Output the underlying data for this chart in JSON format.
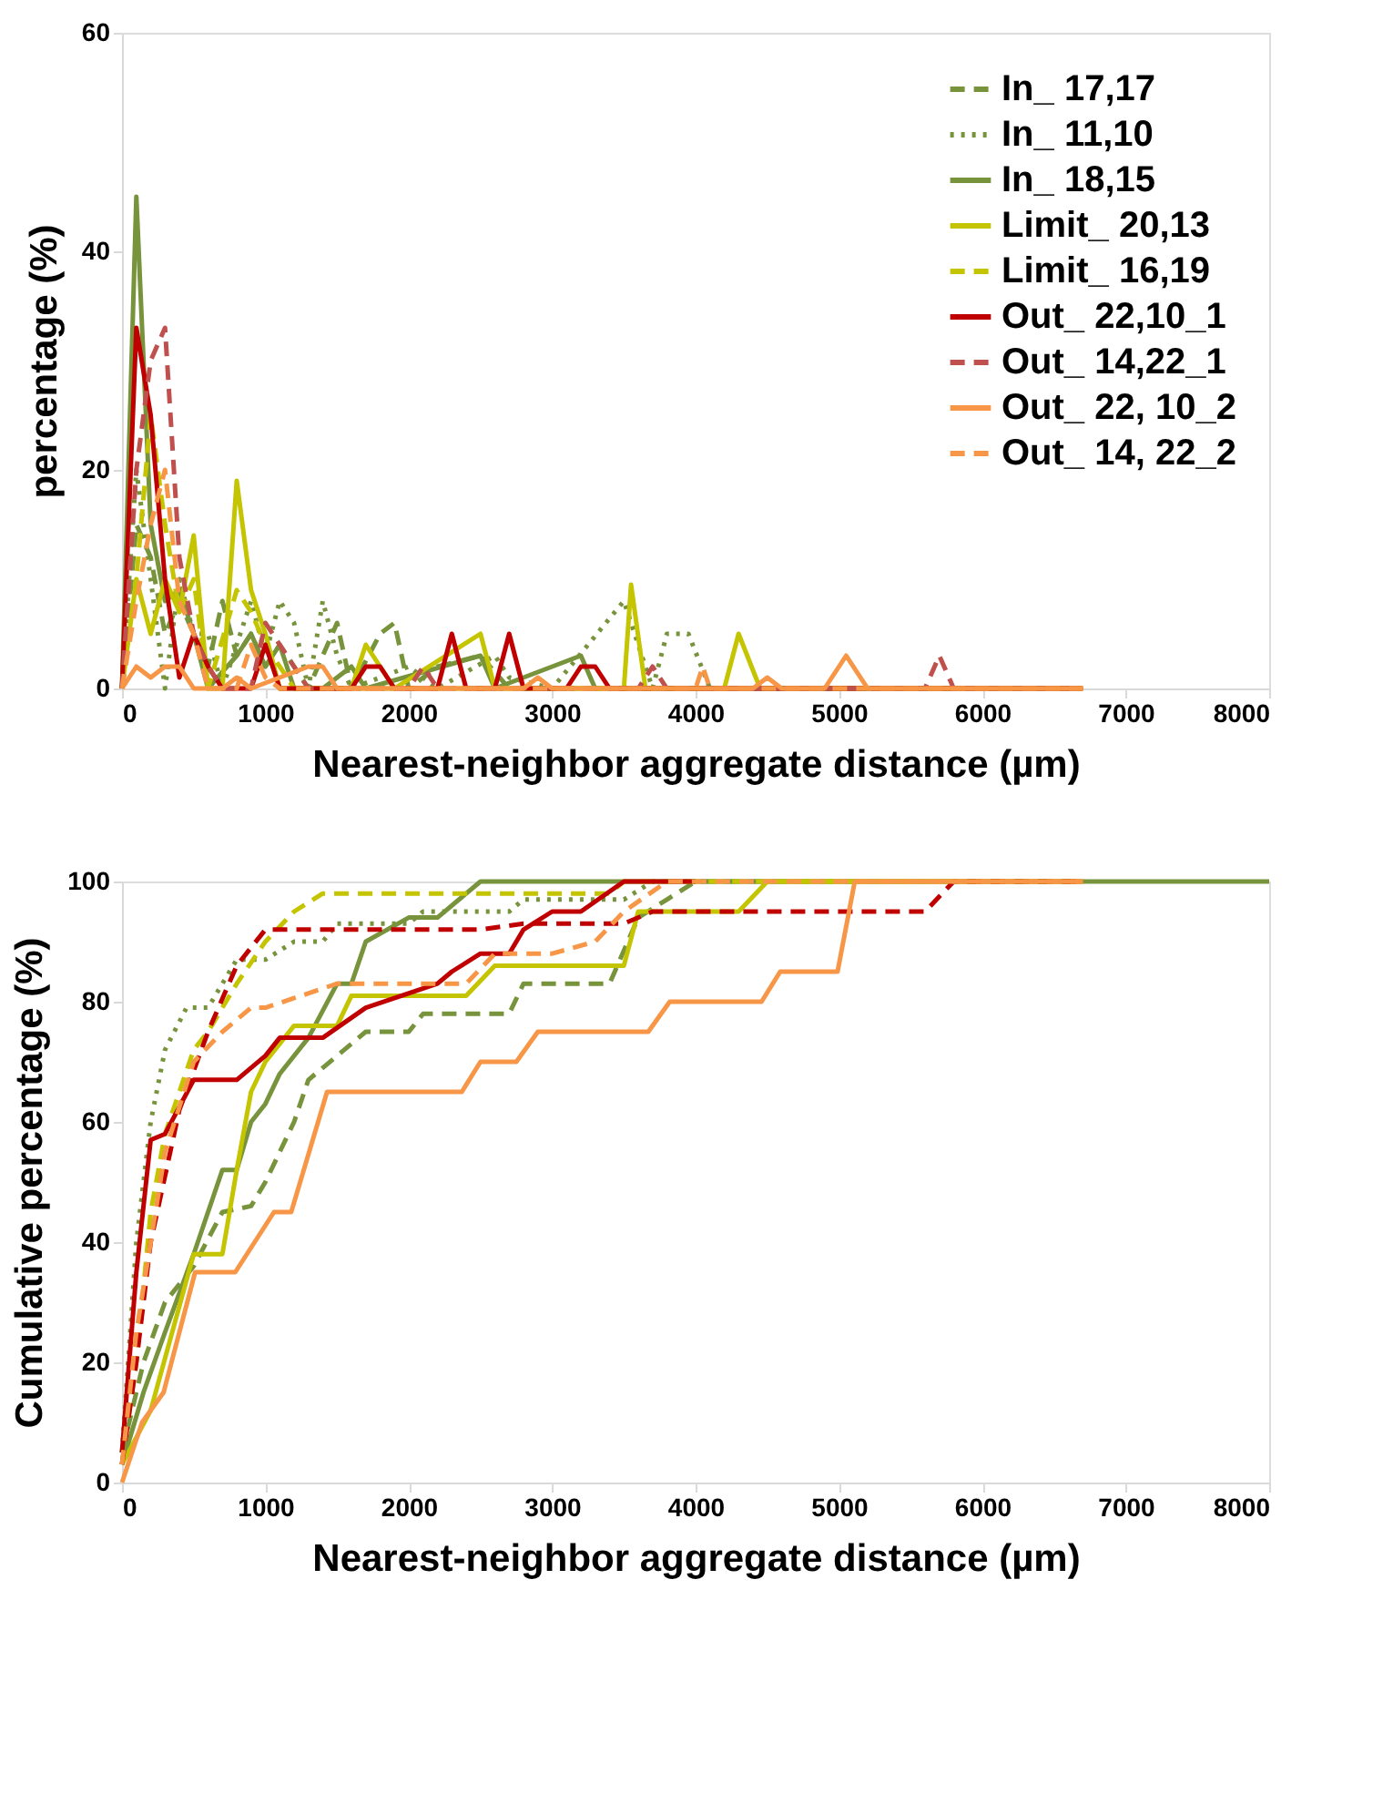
{
  "chart_data": [
    {
      "type": "line",
      "xlabel": "Nearest-neighbor aggregate distance (µm)",
      "ylabel": "percentage (%)",
      "xlim": [
        0,
        8000
      ],
      "xticks": [
        0,
        1000,
        2000,
        3000,
        4000,
        5000,
        6000,
        7000,
        8000
      ],
      "ylim": [
        0,
        60
      ],
      "yticks": [
        0,
        20,
        40,
        60
      ],
      "grid": false,
      "legend": "top right",
      "series": [
        {
          "name": "In_ 17,17",
          "color": "#77933c",
          "line_style": "dashed",
          "x": [
            0,
            100,
            200,
            300,
            400,
            500,
            600,
            700,
            800,
            900,
            1000,
            1100,
            1300,
            1500,
            1600,
            1800,
            1900,
            2000,
            2200,
            2500,
            2700,
            6700
          ],
          "values": [
            0,
            15,
            12,
            5,
            8,
            5,
            2,
            8,
            3,
            5,
            2,
            4,
            0,
            6,
            0,
            5,
            6,
            0,
            2,
            3,
            0,
            0
          ]
        },
        {
          "name": "In_ 11,10",
          "color": "#77933c",
          "line_style": "dotted",
          "x": [
            0,
            100,
            200,
            300,
            400,
            500,
            600,
            700,
            900,
            1000,
            1100,
            1200,
            1300,
            1400,
            1500,
            1600,
            2000,
            2200,
            2600,
            2700,
            3000,
            3500,
            3700,
            3800,
            3950,
            4100,
            6700
          ],
          "values": [
            0,
            20,
            10,
            0,
            10,
            5,
            5,
            0,
            8,
            3,
            8,
            6,
            0,
            8,
            3,
            0,
            2,
            0,
            3,
            1,
            0,
            8,
            0,
            5,
            5,
            0,
            0
          ]
        },
        {
          "name": "In_ 18,15",
          "color": "#77933c",
          "line_style": "solid",
          "x": [
            0,
            100,
            200,
            300,
            400,
            500,
            600,
            800,
            900,
            1000,
            1100,
            1200,
            1400,
            1600,
            1700,
            2500,
            2600,
            3200,
            3300,
            6700
          ],
          "values": [
            0,
            45,
            15,
            8,
            9,
            5,
            0,
            3,
            5,
            2,
            4,
            0,
            0,
            2,
            0,
            3,
            0,
            3,
            0,
            0
          ]
        },
        {
          "name": "Limit_ 20,13",
          "color": "#c4c400",
          "line_style": "solid",
          "x": [
            0,
            100,
            200,
            300,
            400,
            500,
            600,
            700,
            800,
            900,
            1000,
            1100,
            1600,
            1700,
            1900,
            2500,
            2600,
            3500,
            3550,
            3650,
            4200,
            4300,
            4450,
            6700
          ],
          "values": [
            0,
            10,
            5,
            10,
            7,
            14,
            0,
            0,
            19,
            9,
            5,
            0,
            0,
            4,
            0,
            5,
            0,
            0,
            9.5,
            0,
            0,
            5,
            0,
            0
          ]
        },
        {
          "name": "Limit_ 16,19",
          "color": "#c4c400",
          "line_style": "dashed",
          "x": [
            0,
            100,
            200,
            300,
            400,
            500,
            600,
            800,
            900,
            1000,
            1200,
            6700
          ],
          "values": [
            0,
            10,
            25,
            15,
            7,
            10,
            0,
            9,
            7,
            4,
            0,
            0
          ]
        },
        {
          "name": "Out_ 22,10_1",
          "color": "#c00000",
          "line_style": "solid",
          "x": [
            0,
            100,
            200,
            300,
            400,
            500,
            600,
            700,
            900,
            1000,
            1100,
            1600,
            1700,
            1800,
            1900,
            2200,
            2300,
            2400,
            2600,
            2700,
            2800,
            3100,
            3200,
            3300,
            3400,
            6700
          ],
          "values": [
            0,
            33,
            25,
            10,
            1,
            5,
            2,
            0,
            0,
            4,
            0,
            0,
            2,
            2,
            0,
            0,
            5,
            0,
            0,
            5,
            0,
            0,
            2,
            2,
            0,
            0
          ]
        },
        {
          "name": "Out_ 14,22_1",
          "color": "#c0504d",
          "line_style": "dashed",
          "x": [
            0,
            100,
            200,
            300,
            400,
            500,
            600,
            700,
            900,
            1000,
            1200,
            1300,
            2000,
            2100,
            2200,
            3600,
            3700,
            3800,
            5600,
            5700,
            5800,
            6700
          ],
          "values": [
            0,
            20,
            30,
            33,
            12,
            5,
            2,
            0,
            0,
            6,
            2,
            0,
            0,
            2,
            0,
            0,
            2,
            0,
            0,
            3,
            0,
            0
          ]
        },
        {
          "name": "Out_ 22, 10_2",
          "color": "#f79646",
          "line_style": "solid",
          "x": [
            0,
            100,
            200,
            300,
            400,
            500,
            700,
            800,
            900,
            1300,
            1400,
            1500,
            2800,
            2900,
            3000,
            4400,
            4500,
            4600,
            4900,
            5050,
            5200,
            6700
          ],
          "values": [
            0,
            2,
            1,
            2,
            2,
            0,
            0,
            1,
            0,
            2,
            2,
            0,
            0,
            1,
            0,
            0,
            1,
            0,
            0,
            3,
            0,
            0
          ]
        },
        {
          "name": "Out_ 14, 22_2",
          "color": "#f79646",
          "line_style": "dashed",
          "x": [
            0,
            100,
            200,
            300,
            400,
            500,
            600,
            800,
            900,
            1000,
            1100,
            4000,
            4050,
            4100,
            6700
          ],
          "values": [
            0,
            8,
            15,
            20,
            8,
            5,
            0,
            0,
            4,
            1,
            0,
            0,
            2,
            0,
            0
          ]
        }
      ]
    },
    {
      "type": "line",
      "xlabel": "Nearest-neighbor aggregate distance (µm)",
      "ylabel": "Cumulative percentage (%)",
      "xlim": [
        0,
        8000
      ],
      "xticks": [
        0,
        1000,
        2000,
        3000,
        4000,
        5000,
        6000,
        7000,
        8000
      ],
      "ylim": [
        0,
        100
      ],
      "yticks": [
        0,
        20,
        40,
        60,
        80,
        100
      ],
      "grid": false,
      "legend": false,
      "series": [
        {
          "color": "#77933c",
          "line_style": "dashed",
          "x": [
            0,
            150,
            300,
            500,
            700,
            900,
            1000,
            1200,
            1300,
            1500,
            1700,
            2000,
            2100,
            2700,
            2800,
            3400,
            3600,
            3800,
            4000,
            6700
          ],
          "values": [
            5,
            20,
            30,
            36,
            45,
            46,
            50,
            60,
            67,
            71,
            75,
            75,
            78,
            78,
            83,
            83,
            94,
            97,
            100,
            100
          ]
        },
        {
          "color": "#77933c",
          "line_style": "dotted",
          "x": [
            0,
            100,
            200,
            300,
            450,
            600,
            800,
            1000,
            1200,
            1400,
            1500,
            2000,
            2100,
            2700,
            2800,
            3500,
            3700,
            4000
          ],
          "values": [
            5,
            40,
            60,
            72,
            79,
            79,
            87,
            87,
            90,
            90,
            93,
            93,
            95,
            95,
            97,
            97,
            100,
            100
          ]
        },
        {
          "color": "#77933c",
          "line_style": "solid",
          "x": [
            0,
            150,
            300,
            500,
            700,
            800,
            900,
            1000,
            1100,
            1300,
            1500,
            1600,
            1700,
            2000,
            2200,
            2500,
            8000
          ],
          "values": [
            3,
            15,
            25,
            38,
            52,
            52,
            60,
            63,
            68,
            74,
            83,
            83,
            90,
            94,
            94,
            100,
            100
          ]
        },
        {
          "color": "#c4c400",
          "line_style": "solid",
          "x": [
            0,
            200,
            500,
            700,
            800,
            900,
            1000,
            1200,
            1500,
            1600,
            2400,
            2600,
            3500,
            3600,
            4300,
            4500,
            6700
          ],
          "values": [
            3,
            12,
            38,
            38,
            52,
            65,
            70,
            76,
            76,
            81,
            81,
            86,
            86,
            95,
            95,
            100,
            100
          ]
        },
        {
          "color": "#c4c400",
          "line_style": "dashed",
          "x": [
            0,
            100,
            200,
            300,
            500,
            600,
            800,
            1000,
            1200,
            1400,
            3400,
            3500,
            6700
          ],
          "values": [
            3,
            20,
            45,
            58,
            72,
            75,
            83,
            90,
            95,
            98,
            98,
            100,
            100
          ]
        },
        {
          "color": "#c00000",
          "line_style": "solid",
          "x": [
            0,
            100,
            200,
            300,
            500,
            800,
            1000,
            1100,
            1400,
            1700,
            2200,
            2300,
            2500,
            2700,
            2800,
            3000,
            3200,
            3500,
            4000
          ],
          "values": [
            5,
            35,
            57,
            58,
            67,
            67,
            71,
            74,
            74,
            79,
            83,
            85,
            88,
            88,
            92,
            95,
            95,
            100,
            100
          ]
        },
        {
          "color": "#c00000",
          "line_style": "dashed",
          "x": [
            0,
            100,
            200,
            400,
            600,
            800,
            1000,
            2500,
            2800,
            3500,
            3700,
            5600,
            5800,
            6700
          ],
          "values": [
            3,
            20,
            40,
            62,
            75,
            86,
            92,
            92,
            93,
            93,
            95,
            95,
            100,
            100
          ]
        },
        {
          "color": "#f79646",
          "line_style": "solid",
          "x": [
            0,
            140,
            290,
            510,
            790,
            1060,
            1180,
            1430,
            2370,
            2500,
            2750,
            2900,
            3670,
            3820,
            4460,
            4590,
            4990,
            5110,
            6700
          ],
          "values": [
            0,
            10,
            15,
            35,
            35,
            45,
            45,
            65,
            65,
            70,
            70,
            75,
            75,
            80,
            80,
            85,
            85,
            100,
            100
          ]
        },
        {
          "color": "#f79646",
          "line_style": "dashed",
          "x": [
            0,
            100,
            300,
            500,
            700,
            900,
            1000,
            1500,
            2400,
            2600,
            3000,
            3300,
            3500,
            3800,
            6700
          ],
          "values": [
            3,
            25,
            55,
            70,
            75,
            79,
            79,
            83,
            83,
            88,
            88,
            90,
            95,
            100,
            100
          ]
        }
      ]
    }
  ]
}
